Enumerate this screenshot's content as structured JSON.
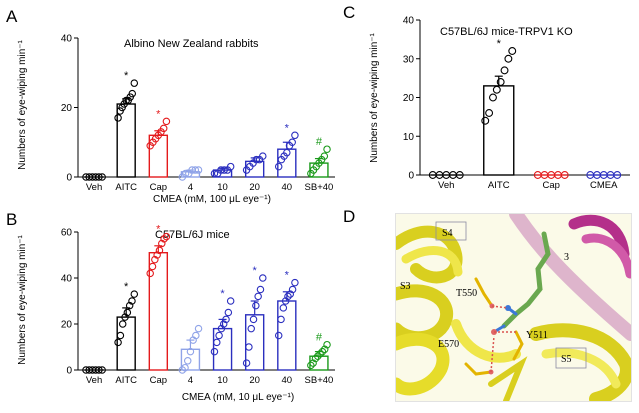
{
  "figure": {
    "panel_letters": [
      "A",
      "B",
      "C",
      "D"
    ],
    "structure_labels": [
      {
        "text": "S4"
      },
      {
        "text": "S3"
      },
      {
        "text": "T550"
      },
      {
        "text": "3"
      },
      {
        "text": "E570"
      },
      {
        "text": "Y511"
      },
      {
        "text": "S5"
      }
    ],
    "structure_image_name": "trpa1-binding-site-structure"
  },
  "colors": {
    "black": "#000000",
    "red": "#e41a1c",
    "lightblue": "#8fa3e8",
    "blue": "#2b2fbf",
    "green": "#1a9a1a",
    "helix_yellow": "#e6dc2a",
    "helix_magenta": "#b4308a",
    "ligand_green": "#6aa84f"
  },
  "chart_data": [
    {
      "panel": "A",
      "type": "bar",
      "title": "Albino New Zealand rabbits",
      "ylabel": "Numbers of eye-wiping min⁻¹",
      "xgroup_label": "CMEA (mM, 100 μL eye⁻¹)",
      "ylim": [
        0,
        40
      ],
      "yticks": [
        0,
        20,
        40
      ],
      "categories": [
        "Veh",
        "AITC",
        "Cap",
        "4",
        "10",
        "20",
        "40",
        "SB+40"
      ],
      "values": [
        0,
        21,
        12,
        1.5,
        2,
        4.5,
        8,
        4
      ],
      "errors": [
        0,
        1.5,
        1.3,
        0.5,
        0.5,
        1,
        2,
        1.3
      ],
      "colors": [
        "#000000",
        "#000000",
        "#e41a1c",
        "#8fa3e8",
        "#2b2fbf",
        "#2b2fbf",
        "#2b2fbf",
        "#1a9a1a"
      ],
      "marks": [
        "",
        "*",
        "*",
        "",
        "",
        "",
        "*",
        "#"
      ],
      "points": [
        [
          0,
          0,
          0,
          0,
          0,
          0
        ],
        [
          17,
          19,
          20,
          21,
          22,
          22,
          23,
          24,
          27
        ],
        [
          9,
          10,
          11,
          12,
          13,
          14,
          16
        ],
        [
          0,
          1,
          1,
          2,
          2,
          2
        ],
        [
          1,
          1,
          2,
          2,
          2,
          3
        ],
        [
          2,
          3,
          4,
          5,
          5,
          6
        ],
        [
          3,
          5,
          6,
          7,
          9,
          10,
          12
        ],
        [
          1,
          2,
          3,
          4,
          5,
          6,
          8
        ]
      ]
    },
    {
      "panel": "B",
      "type": "bar",
      "title": "C57BL/6J mice",
      "ylabel": "Numbers of eye-wiping min⁻¹",
      "xgroup_label": "CMEA (mM, 10 μL eye⁻¹)",
      "ylim": [
        0,
        60
      ],
      "yticks": [
        0,
        20,
        40,
        60
      ],
      "categories": [
        "Veh",
        "AITC",
        "Cap",
        "4",
        "10",
        "20",
        "40",
        "SB+40"
      ],
      "values": [
        0,
        23,
        51,
        9,
        18,
        24,
        30,
        6
      ],
      "errors": [
        0,
        4,
        3,
        4,
        4,
        6,
        4,
        2
      ],
      "colors": [
        "#000000",
        "#000000",
        "#e41a1c",
        "#8fa3e8",
        "#2b2fbf",
        "#2b2fbf",
        "#2b2fbf",
        "#1a9a1a"
      ],
      "marks": [
        "",
        "*",
        "*",
        "",
        "*",
        "*",
        "*",
        "#"
      ],
      "points": [
        [
          0,
          0,
          0,
          0,
          0,
          0
        ],
        [
          12,
          15,
          20,
          23,
          25,
          28,
          30,
          33
        ],
        [
          42,
          45,
          48,
          50,
          52,
          55,
          57,
          58
        ],
        [
          0,
          1,
          4,
          8,
          13,
          15,
          18
        ],
        [
          8,
          12,
          15,
          18,
          20,
          22,
          25,
          30
        ],
        [
          3,
          10,
          18,
          22,
          28,
          32,
          35,
          40
        ],
        [
          15,
          22,
          27,
          30,
          32,
          33,
          35,
          38
        ],
        [
          2,
          3,
          5,
          6,
          7,
          8,
          9,
          11
        ]
      ]
    },
    {
      "panel": "C",
      "type": "bar",
      "title": "C57BL/6J mice-TRPV1 KO",
      "ylabel": "Numbers of eye-wiping min⁻¹",
      "xgroup_label": "",
      "ylim": [
        0,
        40
      ],
      "yticks": [
        0,
        10,
        20,
        30,
        40
      ],
      "categories": [
        "Veh",
        "AITC",
        "Cap",
        "CMEA"
      ],
      "values": [
        0,
        23,
        0,
        0
      ],
      "errors": [
        0,
        2.5,
        0,
        0
      ],
      "colors": [
        "#000000",
        "#000000",
        "#e41a1c",
        "#2b2fbf"
      ],
      "marks": [
        "",
        "*",
        "",
        ""
      ],
      "points": [
        [
          0,
          0,
          0,
          0,
          0
        ],
        [
          14,
          16,
          20,
          22,
          24,
          27,
          30,
          32
        ],
        [
          0,
          0,
          0,
          0,
          0
        ],
        [
          0,
          0,
          0,
          0,
          0
        ]
      ]
    }
  ]
}
